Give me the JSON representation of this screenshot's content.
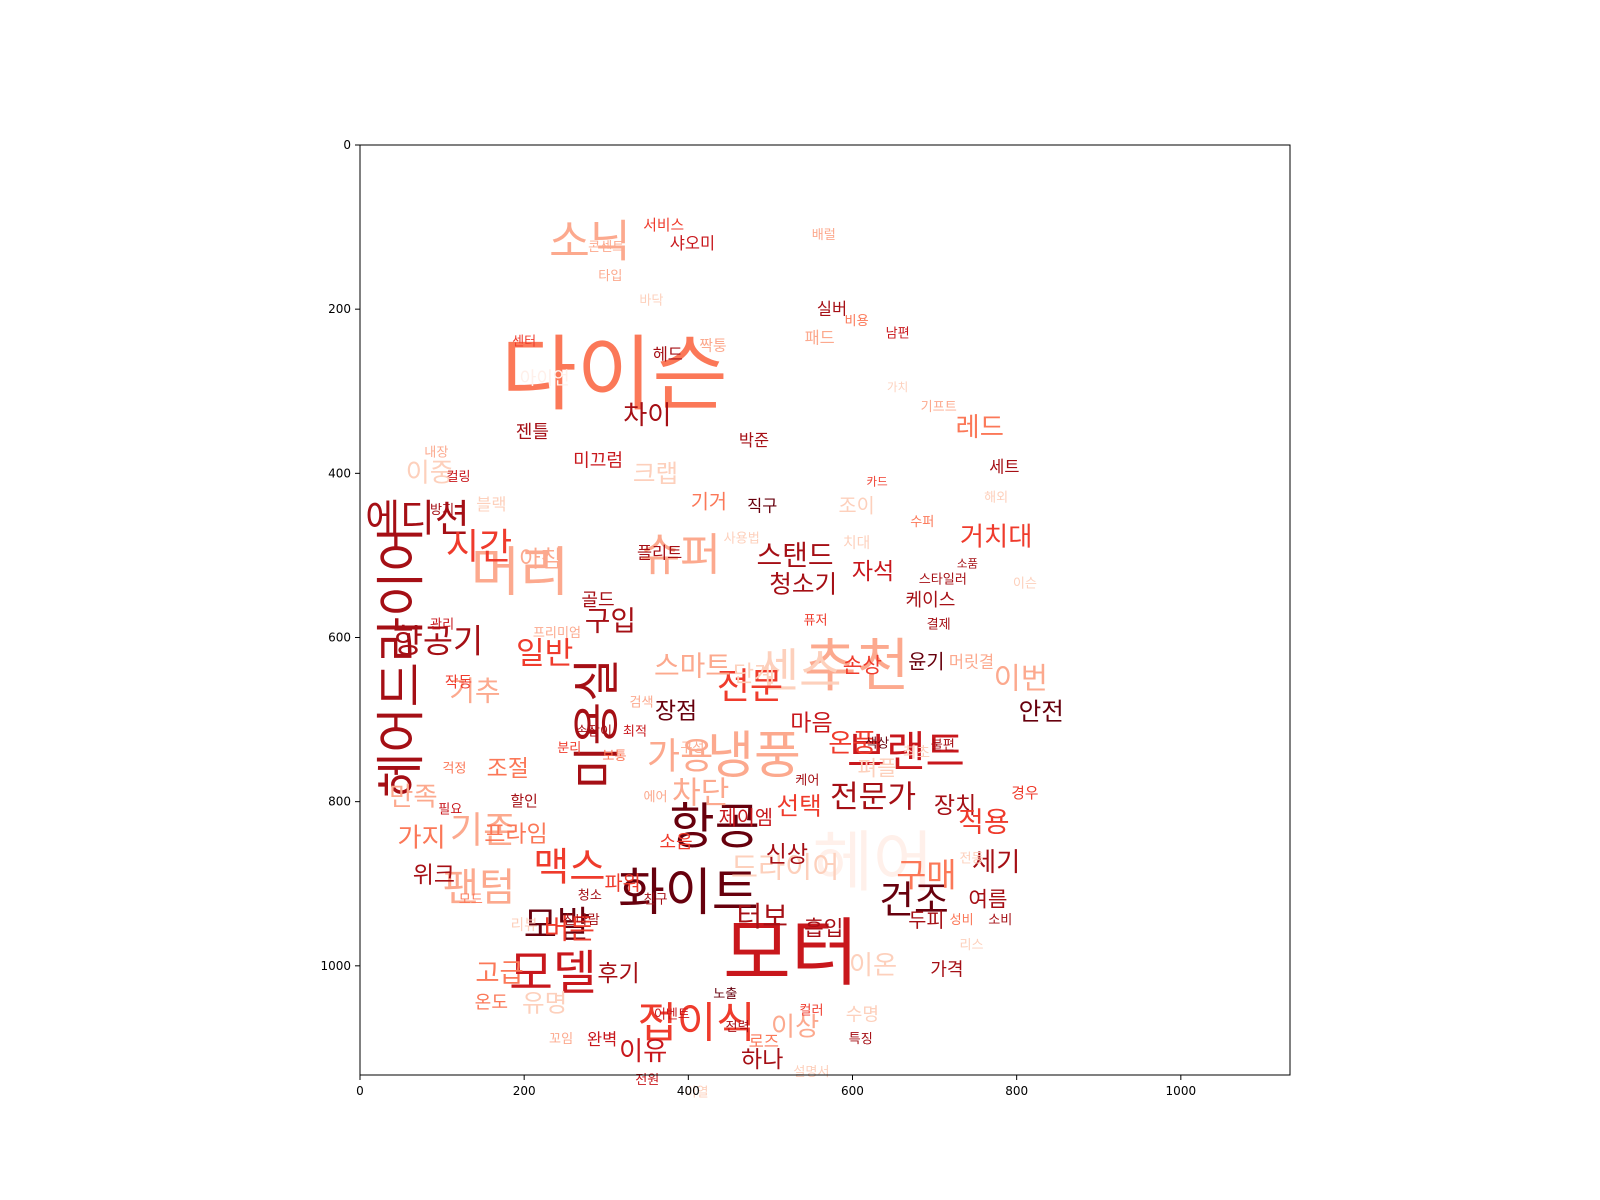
{
  "chart_data": {
    "type": "wordcloud",
    "title": "",
    "xlabel": "",
    "ylabel": "",
    "xlim": [
      0,
      1133
    ],
    "ylim": [
      1133,
      0
    ],
    "x_ticks": [
      "0",
      "200",
      "400",
      "600",
      "800",
      "1000"
    ],
    "y_ticks": [
      "0",
      "200",
      "400",
      "600",
      "800",
      "1000"
    ],
    "grid": false,
    "palette": [
      "#fff0ea",
      "#fdd0bc",
      "#fca98e",
      "#fb7858",
      "#ef3b2c",
      "#c8171c",
      "#a50f15",
      "#67000d"
    ],
    "words": [
      {
        "text": "다이슨",
        "x": 310,
        "y": 280,
        "size": 100,
        "shade": 3
      },
      {
        "text": "소닉",
        "x": 280,
        "y": 118,
        "size": 54,
        "shade": 2
      },
      {
        "text": "추천",
        "x": 605,
        "y": 635,
        "size": 70,
        "shade": 2
      },
      {
        "text": "모터",
        "x": 525,
        "y": 985,
        "size": 90,
        "shade": 5
      },
      {
        "text": "화이트",
        "x": 400,
        "y": 912,
        "size": 62,
        "shade": 7
      },
      {
        "text": "항공",
        "x": 432,
        "y": 830,
        "size": 60,
        "shade": 7
      },
      {
        "text": "모델",
        "x": 235,
        "y": 1010,
        "size": 58,
        "shade": 5
      },
      {
        "text": "미용실",
        "x": 290,
        "y": 705,
        "size": 58,
        "shade": 6,
        "rotate": -90
      },
      {
        "text": "헤어드라이어",
        "x": 50,
        "y": 630,
        "size": 60,
        "shade": 6,
        "rotate": -90
      },
      {
        "text": "머리",
        "x": 195,
        "y": 520,
        "size": 65,
        "shade": 2
      },
      {
        "text": "냉풍",
        "x": 480,
        "y": 745,
        "size": 62,
        "shade": 2
      },
      {
        "text": "센스",
        "x": 535,
        "y": 640,
        "size": 56,
        "shade": 1
      },
      {
        "text": "슈퍼",
        "x": 390,
        "y": 500,
        "size": 54,
        "shade": 2
      },
      {
        "text": "브랜드",
        "x": 665,
        "y": 740,
        "size": 52,
        "shade": 5
      },
      {
        "text": "헤어",
        "x": 625,
        "y": 875,
        "size": 80,
        "shade": 0
      },
      {
        "text": "접이식",
        "x": 410,
        "y": 1070,
        "size": 52,
        "shade": 4
      },
      {
        "text": "맥스",
        "x": 255,
        "y": 880,
        "size": 48,
        "shade": 4
      },
      {
        "text": "에디션",
        "x": 70,
        "y": 455,
        "size": 46,
        "shade": 6
      },
      {
        "text": "시간",
        "x": 145,
        "y": 490,
        "size": 44,
        "shade": 4
      },
      {
        "text": "항공기",
        "x": 95,
        "y": 605,
        "size": 40,
        "shade": 6
      },
      {
        "text": "전문",
        "x": 475,
        "y": 660,
        "size": 44,
        "shade": 4
      },
      {
        "text": "가용",
        "x": 390,
        "y": 745,
        "size": 44,
        "shade": 2
      },
      {
        "text": "전문가",
        "x": 625,
        "y": 795,
        "size": 38,
        "shade": 6
      },
      {
        "text": "건조",
        "x": 675,
        "y": 920,
        "size": 46,
        "shade": 7
      },
      {
        "text": "구매",
        "x": 690,
        "y": 890,
        "size": 40,
        "shade": 3
      },
      {
        "text": "모발",
        "x": 240,
        "y": 950,
        "size": 44,
        "shade": 7
      },
      {
        "text": "팬텀",
        "x": 145,
        "y": 905,
        "size": 48,
        "shade": 2
      },
      {
        "text": "기존",
        "x": 150,
        "y": 835,
        "size": 44,
        "shade": 2
      },
      {
        "text": "드라이어",
        "x": 518,
        "y": 880,
        "size": 36,
        "shade": 1
      },
      {
        "text": "터보",
        "x": 490,
        "y": 940,
        "size": 34,
        "shade": 6
      },
      {
        "text": "스탠드",
        "x": 530,
        "y": 500,
        "size": 34,
        "shade": 6
      },
      {
        "text": "거치대",
        "x": 775,
        "y": 478,
        "size": 32,
        "shade": 4
      },
      {
        "text": "레드",
        "x": 755,
        "y": 345,
        "size": 32,
        "shade": 3
      },
      {
        "text": "차이",
        "x": 350,
        "y": 330,
        "size": 32,
        "shade": 6
      },
      {
        "text": "크랩",
        "x": 360,
        "y": 400,
        "size": 30,
        "shade": 1
      },
      {
        "text": "이중",
        "x": 85,
        "y": 400,
        "size": 32,
        "shade": 1
      },
      {
        "text": "청소기",
        "x": 540,
        "y": 535,
        "size": 30,
        "shade": 6
      },
      {
        "text": "자석",
        "x": 625,
        "y": 520,
        "size": 28,
        "shade": 5
      },
      {
        "text": "케이스",
        "x": 695,
        "y": 555,
        "size": 22,
        "shade": 6
      },
      {
        "text": "스마트",
        "x": 405,
        "y": 635,
        "size": 34,
        "shade": 2
      },
      {
        "text": "단계",
        "x": 480,
        "y": 645,
        "size": 28,
        "shade": 1
      },
      {
        "text": "일반",
        "x": 225,
        "y": 620,
        "size": 38,
        "shade": 4
      },
      {
        "text": "구입",
        "x": 305,
        "y": 580,
        "size": 34,
        "shade": 6
      },
      {
        "text": "아침",
        "x": 220,
        "y": 505,
        "size": 28,
        "shade": 2
      },
      {
        "text": "기추",
        "x": 140,
        "y": 665,
        "size": 34,
        "shade": 2
      },
      {
        "text": "작동",
        "x": 120,
        "y": 655,
        "size": 18,
        "shade": 4
      },
      {
        "text": "이번",
        "x": 805,
        "y": 650,
        "size": 36,
        "shade": 2
      },
      {
        "text": "안전",
        "x": 830,
        "y": 690,
        "size": 30,
        "shade": 7
      },
      {
        "text": "손상",
        "x": 612,
        "y": 635,
        "size": 26,
        "shade": 4
      },
      {
        "text": "윤기",
        "x": 690,
        "y": 630,
        "size": 24,
        "shade": 7
      },
      {
        "text": "머릿결",
        "x": 745,
        "y": 630,
        "size": 20,
        "shade": 2
      },
      {
        "text": "마음",
        "x": 550,
        "y": 705,
        "size": 28,
        "shade": 5
      },
      {
        "text": "온풍",
        "x": 600,
        "y": 730,
        "size": 32,
        "shade": 4
      },
      {
        "text": "펴플",
        "x": 630,
        "y": 760,
        "size": 26,
        "shade": 1
      },
      {
        "text": "장점",
        "x": 385,
        "y": 690,
        "size": 28,
        "shade": 7
      },
      {
        "text": "차단",
        "x": 415,
        "y": 790,
        "size": 38,
        "shade": 2
      },
      {
        "text": "선택",
        "x": 535,
        "y": 805,
        "size": 30,
        "shade": 4
      },
      {
        "text": "장치",
        "x": 725,
        "y": 805,
        "size": 28,
        "shade": 6
      },
      {
        "text": "적용",
        "x": 760,
        "y": 825,
        "size": 34,
        "shade": 4
      },
      {
        "text": "세기",
        "x": 775,
        "y": 875,
        "size": 32,
        "shade": 6
      },
      {
        "text": "여름",
        "x": 765,
        "y": 920,
        "size": 26,
        "shade": 6
      },
      {
        "text": "신상",
        "x": 520,
        "y": 865,
        "size": 28,
        "shade": 6
      },
      {
        "text": "흡입",
        "x": 565,
        "y": 955,
        "size": 26,
        "shade": 6
      },
      {
        "text": "두피",
        "x": 690,
        "y": 945,
        "size": 24,
        "shade": 6
      },
      {
        "text": "성비",
        "x": 733,
        "y": 945,
        "size": 16,
        "shade": 3
      },
      {
        "text": "소비",
        "x": 780,
        "y": 945,
        "size": 16,
        "shade": 6
      },
      {
        "text": "가격",
        "x": 715,
        "y": 1005,
        "size": 22,
        "shade": 6
      },
      {
        "text": "이상",
        "x": 530,
        "y": 1075,
        "size": 32,
        "shade": 2
      },
      {
        "text": "하나",
        "x": 490,
        "y": 1115,
        "size": 28,
        "shade": 6
      },
      {
        "text": "이유",
        "x": 345,
        "y": 1105,
        "size": 32,
        "shade": 5
      },
      {
        "text": "후기",
        "x": 315,
        "y": 1010,
        "size": 28,
        "shade": 6
      },
      {
        "text": "고급",
        "x": 170,
        "y": 1010,
        "size": 32,
        "shade": 3
      },
      {
        "text": "유명",
        "x": 225,
        "y": 1045,
        "size": 30,
        "shade": 1
      },
      {
        "text": "완벽",
        "x": 295,
        "y": 1090,
        "size": 20,
        "shade": 5
      },
      {
        "text": "위크",
        "x": 90,
        "y": 890,
        "size": 28,
        "shade": 6
      },
      {
        "text": "가지",
        "x": 75,
        "y": 845,
        "size": 32,
        "shade": 3
      },
      {
        "text": "만족",
        "x": 65,
        "y": 795,
        "size": 32,
        "shade": 2
      },
      {
        "text": "조절",
        "x": 180,
        "y": 760,
        "size": 28,
        "shade": 3
      },
      {
        "text": "할인",
        "x": 200,
        "y": 800,
        "size": 18,
        "shade": 6
      },
      {
        "text": "프라임",
        "x": 190,
        "y": 840,
        "size": 28,
        "shade": 3
      },
      {
        "text": "파워",
        "x": 320,
        "y": 900,
        "size": 24,
        "shade": 4
      },
      {
        "text": "버튼",
        "x": 255,
        "y": 955,
        "size": 34,
        "shade": 4
      },
      {
        "text": "소음",
        "x": 385,
        "y": 850,
        "size": 22,
        "shade": 4
      },
      {
        "text": "제이엠",
        "x": 470,
        "y": 820,
        "size": 24,
        "shade": 5
      },
      {
        "text": "세트",
        "x": 785,
        "y": 392,
        "size": 20,
        "shade": 6
      },
      {
        "text": "기거",
        "x": 425,
        "y": 435,
        "size": 24,
        "shade": 3
      },
      {
        "text": "직구",
        "x": 490,
        "y": 440,
        "size": 20,
        "shade": 7
      },
      {
        "text": "조이",
        "x": 605,
        "y": 440,
        "size": 24,
        "shade": 1
      },
      {
        "text": "플리트",
        "x": 365,
        "y": 497,
        "size": 20,
        "shade": 6
      },
      {
        "text": "골드",
        "x": 290,
        "y": 555,
        "size": 22,
        "shade": 6
      },
      {
        "text": "미끄럼",
        "x": 290,
        "y": 385,
        "size": 22,
        "shade": 5
      },
      {
        "text": "젠틀",
        "x": 210,
        "y": 350,
        "size": 22,
        "shade": 6
      },
      {
        "text": "박준",
        "x": 480,
        "y": 360,
        "size": 20,
        "shade": 6
      },
      {
        "text": "아이언",
        "x": 225,
        "y": 285,
        "size": 22,
        "shade": 0
      },
      {
        "text": "헤드",
        "x": 375,
        "y": 255,
        "size": 20,
        "shade": 6
      },
      {
        "text": "짝퉁",
        "x": 430,
        "y": 245,
        "size": 18,
        "shade": 2
      },
      {
        "text": "패드",
        "x": 560,
        "y": 235,
        "size": 20,
        "shade": 2
      },
      {
        "text": "실버",
        "x": 575,
        "y": 200,
        "size": 20,
        "shade": 6
      },
      {
        "text": "비용",
        "x": 605,
        "y": 215,
        "size": 16,
        "shade": 3
      },
      {
        "text": "남편",
        "x": 655,
        "y": 230,
        "size": 16,
        "shade": 5
      },
      {
        "text": "샤오미",
        "x": 405,
        "y": 120,
        "size": 20,
        "shade": 5
      },
      {
        "text": "서비스",
        "x": 370,
        "y": 98,
        "size": 18,
        "shade": 4
      },
      {
        "text": "배럴",
        "x": 565,
        "y": 110,
        "size": 16,
        "shade": 2
      },
      {
        "text": "콘센트",
        "x": 300,
        "y": 125,
        "size": 16,
        "shade": 2
      },
      {
        "text": "타입",
        "x": 305,
        "y": 160,
        "size": 16,
        "shade": 2
      },
      {
        "text": "바닥",
        "x": 355,
        "y": 190,
        "size": 16,
        "shade": 1
      },
      {
        "text": "센터",
        "x": 200,
        "y": 240,
        "size": 16,
        "shade": 4
      },
      {
        "text": "기프트",
        "x": 705,
        "y": 320,
        "size": 16,
        "shade": 2
      },
      {
        "text": "가치",
        "x": 655,
        "y": 295,
        "size": 14,
        "shade": 1
      },
      {
        "text": "내장",
        "x": 93,
        "y": 375,
        "size": 16,
        "shade": 2
      },
      {
        "text": "컬링",
        "x": 120,
        "y": 405,
        "size": 16,
        "shade": 5
      },
      {
        "text": "카드",
        "x": 630,
        "y": 410,
        "size": 14,
        "shade": 4
      },
      {
        "text": "해외",
        "x": 775,
        "y": 430,
        "size": 16,
        "shade": 1
      },
      {
        "text": "수퍼",
        "x": 685,
        "y": 460,
        "size": 16,
        "shade": 3
      },
      {
        "text": "치대",
        "x": 605,
        "y": 485,
        "size": 18,
        "shade": 1
      },
      {
        "text": "사용법",
        "x": 465,
        "y": 480,
        "size": 16,
        "shade": 1
      },
      {
        "text": "스타일러",
        "x": 710,
        "y": 530,
        "size": 16,
        "shade": 6
      },
      {
        "text": "소품",
        "x": 740,
        "y": 510,
        "size": 14,
        "shade": 6
      },
      {
        "text": "이슨",
        "x": 810,
        "y": 535,
        "size": 16,
        "shade": 1
      },
      {
        "text": "결제",
        "x": 705,
        "y": 585,
        "size": 16,
        "shade": 6
      },
      {
        "text": "퓨저",
        "x": 555,
        "y": 580,
        "size": 16,
        "shade": 4
      },
      {
        "text": "블랙",
        "x": 160,
        "y": 438,
        "size": 20,
        "shade": 1
      },
      {
        "text": "방지",
        "x": 100,
        "y": 445,
        "size": 16,
        "shade": 6
      },
      {
        "text": "관리",
        "x": 100,
        "y": 585,
        "size": 16,
        "shade": 5
      },
      {
        "text": "프리미엄",
        "x": 240,
        "y": 595,
        "size": 16,
        "shade": 2
      },
      {
        "text": "검색",
        "x": 343,
        "y": 680,
        "size": 16,
        "shade": 2
      },
      {
        "text": "손잡이",
        "x": 285,
        "y": 715,
        "size": 16,
        "shade": 6
      },
      {
        "text": "최적",
        "x": 335,
        "y": 715,
        "size": 16,
        "shade": 5
      },
      {
        "text": "분리",
        "x": 255,
        "y": 735,
        "size": 16,
        "shade": 4
      },
      {
        "text": "보통",
        "x": 310,
        "y": 745,
        "size": 16,
        "shade": 3
      },
      {
        "text": "구성",
        "x": 405,
        "y": 735,
        "size": 16,
        "shade": 2
      },
      {
        "text": "색상",
        "x": 630,
        "y": 730,
        "size": 16,
        "shade": 7
      },
      {
        "text": "최초",
        "x": 678,
        "y": 740,
        "size": 18,
        "shade": 1
      },
      {
        "text": "불편",
        "x": 710,
        "y": 732,
        "size": 16,
        "shade": 6
      },
      {
        "text": "케어",
        "x": 545,
        "y": 775,
        "size": 16,
        "shade": 6
      },
      {
        "text": "에어",
        "x": 360,
        "y": 795,
        "size": 16,
        "shade": 2
      },
      {
        "text": "필요",
        "x": 110,
        "y": 810,
        "size": 16,
        "shade": 5
      },
      {
        "text": "걱정",
        "x": 115,
        "y": 760,
        "size": 16,
        "shade": 3
      },
      {
        "text": "경우",
        "x": 810,
        "y": 790,
        "size": 18,
        "shade": 4
      },
      {
        "text": "청소",
        "x": 280,
        "y": 915,
        "size": 16,
        "shade": 6
      },
      {
        "text": "친구",
        "x": 360,
        "y": 920,
        "size": 16,
        "shade": 6
      },
      {
        "text": "찬바람",
        "x": 270,
        "y": 945,
        "size": 16,
        "shade": 6
      },
      {
        "text": "모드",
        "x": 135,
        "y": 920,
        "size": 16,
        "shade": 3
      },
      {
        "text": "온도",
        "x": 160,
        "y": 1045,
        "size": 22,
        "shade": 3
      },
      {
        "text": "노출",
        "x": 445,
        "y": 1035,
        "size": 16,
        "shade": 7
      },
      {
        "text": "전력",
        "x": 460,
        "y": 1075,
        "size": 16,
        "shade": 6
      },
      {
        "text": "컬러",
        "x": 550,
        "y": 1055,
        "size": 16,
        "shade": 4
      },
      {
        "text": "특징",
        "x": 610,
        "y": 1090,
        "size": 16,
        "shade": 6
      },
      {
        "text": "꼬임",
        "x": 245,
        "y": 1090,
        "size": 16,
        "shade": 2
      },
      {
        "text": "전원",
        "x": 350,
        "y": 1140,
        "size": 16,
        "shade": 5
      },
      {
        "text": "미열",
        "x": 410,
        "y": 1155,
        "size": 16,
        "shade": 1
      },
      {
        "text": "설명서",
        "x": 550,
        "y": 1130,
        "size": 16,
        "shade": 1
      },
      {
        "text": "로즈",
        "x": 492,
        "y": 1092,
        "size": 20,
        "shade": 3
      },
      {
        "text": "수명",
        "x": 612,
        "y": 1060,
        "size": 22,
        "shade": 1
      },
      {
        "text": "이온",
        "x": 625,
        "y": 1000,
        "size": 32,
        "shade": 1
      },
      {
        "text": "리스",
        "x": 745,
        "y": 975,
        "size": 16,
        "shade": 1
      },
      {
        "text": "전동",
        "x": 745,
        "y": 870,
        "size": 16,
        "shade": 1
      },
      {
        "text": "리뷰",
        "x": 200,
        "y": 950,
        "size": 18,
        "shade": 1
      },
      {
        "text": "이벤트",
        "x": 380,
        "y": 1060,
        "size": 16,
        "shade": 5
      }
    ]
  }
}
